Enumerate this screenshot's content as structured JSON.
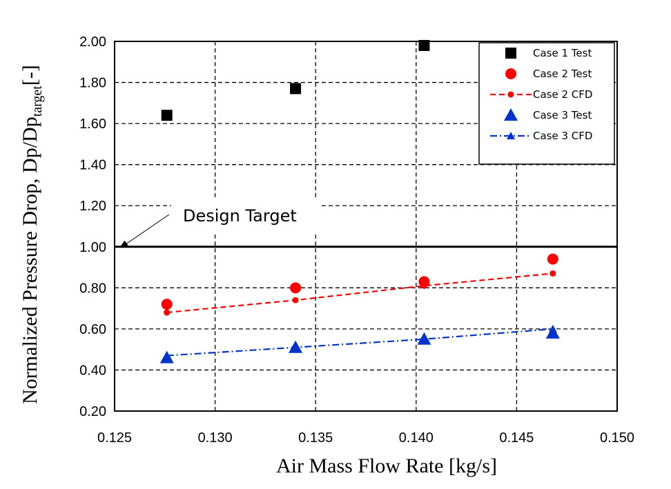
{
  "chart_data": {
    "type": "scatter",
    "title": "",
    "xlabel": "Air Mass Flow Rate [kg/s]",
    "ylabel": {
      "main": "Normalized Pressure Drop, Dp/Dp",
      "subscript": "target",
      "suffix": "[-]"
    },
    "xlim": [
      0.125,
      0.15
    ],
    "ylim": [
      0.2,
      2.0
    ],
    "x_ticks": [
      "0.125",
      "0.130",
      "0.135",
      "0.140",
      "0.145",
      "0.150"
    ],
    "y_ticks": [
      "0.20",
      "0.40",
      "0.60",
      "0.80",
      "1.00",
      "1.20",
      "1.40",
      "1.60",
      "1.80",
      "2.00"
    ],
    "grid": "dashed",
    "legend_position": "top-right",
    "design_target": {
      "label": "Design Target",
      "value": 1.0,
      "marker_x": 0.1255
    },
    "series": [
      {
        "name": "Case 1 Test",
        "color": "#000000",
        "marker": "square",
        "line": "none",
        "x": [
          0.1276,
          0.134,
          0.1404
        ],
        "y": [
          1.64,
          1.77,
          1.98
        ]
      },
      {
        "name": "Case 2 Test",
        "color": "#ff0000",
        "marker": "circle",
        "line": "none",
        "x": [
          0.1276,
          0.134,
          0.1404,
          0.1468
        ],
        "y": [
          0.72,
          0.8,
          0.83,
          0.94
        ]
      },
      {
        "name": "Case 2 CFD",
        "color": "#ff0000",
        "marker": "small-circle",
        "line": "dashed",
        "x": [
          0.1276,
          0.134,
          0.1404,
          0.1468
        ],
        "y": [
          0.68,
          0.74,
          0.81,
          0.87
        ]
      },
      {
        "name": "Case 3 Test",
        "color": "#0033cc",
        "marker": "triangle",
        "line": "none",
        "x": [
          0.1276,
          0.134,
          0.1404,
          0.1468
        ],
        "y": [
          0.46,
          0.51,
          0.55,
          0.58
        ]
      },
      {
        "name": "Case 3 CFD",
        "color": "#0033cc",
        "marker": "small-triangle",
        "line": "dash-dot",
        "x": [
          0.1276,
          0.134,
          0.1404,
          0.1468
        ],
        "y": [
          0.47,
          0.51,
          0.55,
          0.6
        ]
      }
    ]
  }
}
